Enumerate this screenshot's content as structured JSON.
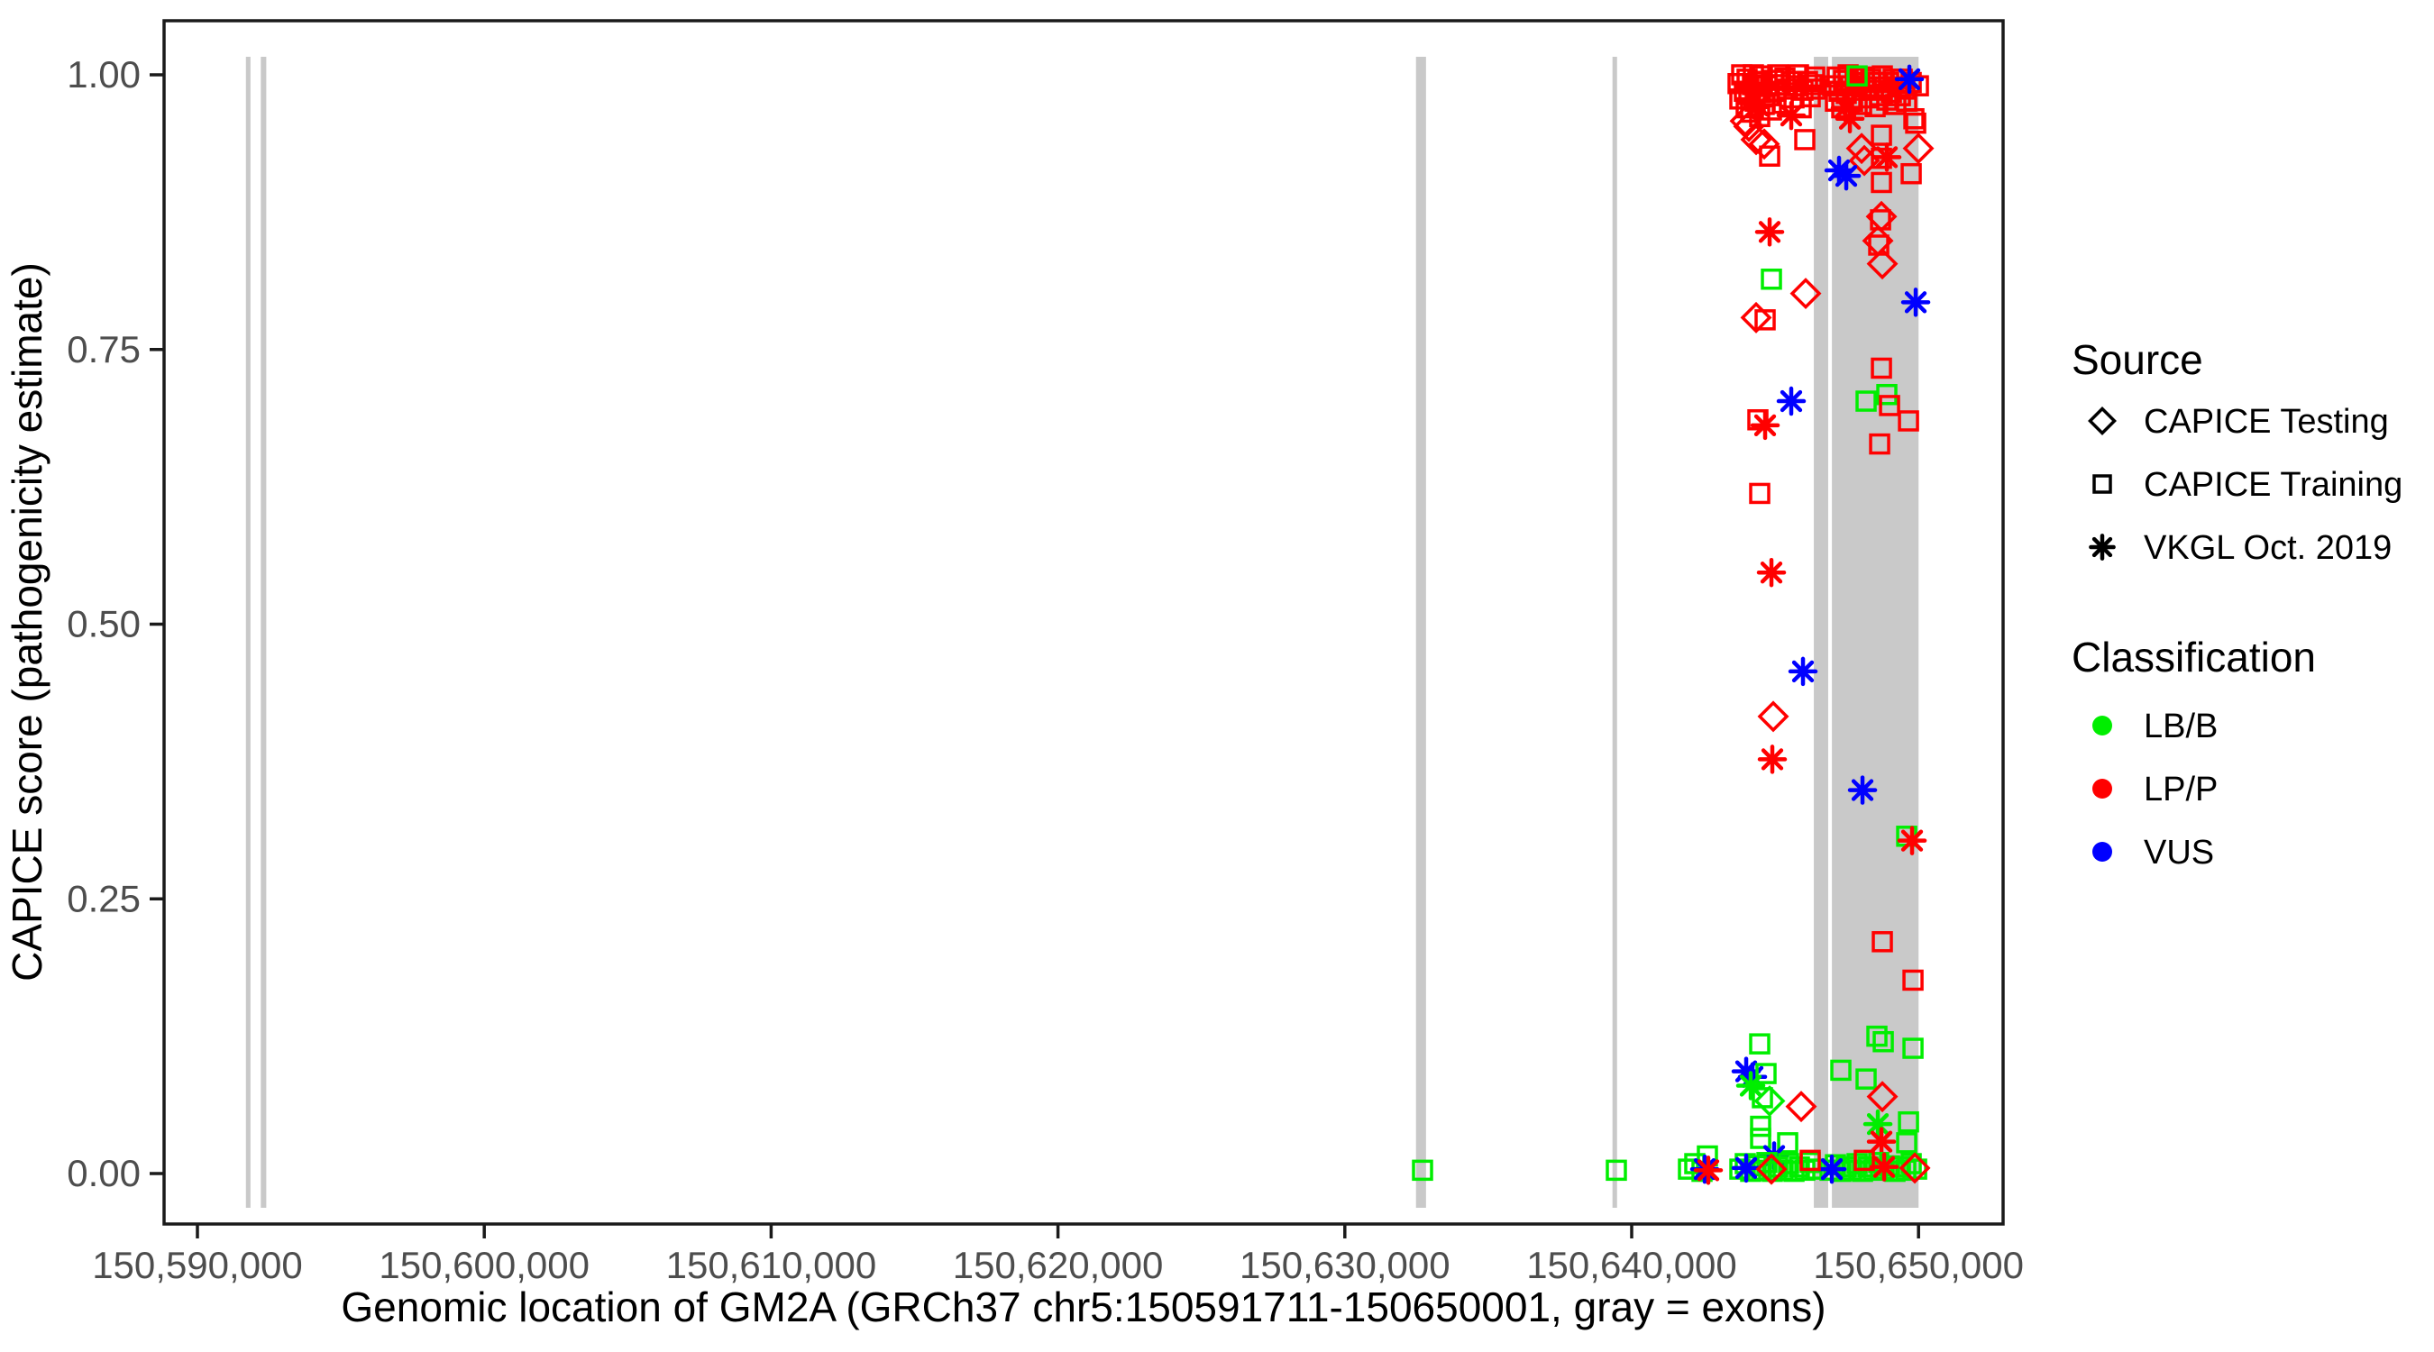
{
  "colors": {
    "g": "#00ee00",
    "r": "#ff0000",
    "b": "#0000ff",
    "exon": "#c9c9c9",
    "axis": "#1a1a1a",
    "tick_text": "#4d4d4d"
  },
  "legend": {
    "source_title": "Source",
    "source_items": [
      {
        "label": "CAPICE Testing",
        "shape": "d"
      },
      {
        "label": "CAPICE Training",
        "shape": "s"
      },
      {
        "label": "VKGL Oct. 2019",
        "shape": "a"
      }
    ],
    "classification_title": "Classification",
    "classification_items": [
      {
        "label": "LB/B",
        "key": "g"
      },
      {
        "label": "LP/P",
        "key": "r"
      },
      {
        "label": "VUS",
        "key": "b"
      }
    ]
  },
  "chart_data": {
    "type": "scatter",
    "title": "",
    "xlabel": "Genomic location of GM2A (GRCh37 chr5:150591711-150650001, gray = exons)",
    "ylabel": "CAPICE score (pathogenicity estimate)",
    "x_range_bp": [
      150591711,
      150650001
    ],
    "ylim": [
      0,
      1
    ],
    "grid": false,
    "legend_position": "right",
    "x_ticks": [
      {
        "bp": 150590000,
        "label": "150,590,000"
      },
      {
        "bp": 150600000,
        "label": "150,600,000"
      },
      {
        "bp": 150610000,
        "label": "150,610,000"
      },
      {
        "bp": 150620000,
        "label": "150,620,000"
      },
      {
        "bp": 150630000,
        "label": "150,630,000"
      },
      {
        "bp": 150640000,
        "label": "150,640,000"
      },
      {
        "bp": 150650000,
        "label": "150,650,000"
      }
    ],
    "y_ticks": [
      {
        "v": 0.0,
        "label": "0.00"
      },
      {
        "v": 0.25,
        "label": "0.25"
      },
      {
        "v": 0.5,
        "label": "0.50"
      },
      {
        "v": 0.75,
        "label": "0.75"
      },
      {
        "v": 1.0,
        "label": "1.00"
      }
    ],
    "exons_bp": [
      [
        150591690,
        150591850
      ],
      [
        150592210,
        150592400
      ],
      [
        150632480,
        150632830
      ],
      [
        150639330,
        150639490
      ],
      [
        150646350,
        150646850
      ],
      [
        150646980,
        150650001
      ]
    ],
    "shape_meaning": {
      "d": "CAPICE Testing (diamond)",
      "s": "CAPICE Training (square)",
      "a": "VKGL Oct. 2019 (asterisk)"
    },
    "class_meaning": {
      "g": "LB/B",
      "r": "LP/P",
      "b": "VUS"
    },
    "points": [
      [
        150643709,
        0.992,
        "s",
        "r"
      ],
      [
        150643772,
        0.978,
        "s",
        "r"
      ],
      [
        150643835,
        1.0,
        "s",
        "r"
      ],
      [
        150643929,
        0.985,
        "s",
        "r"
      ],
      [
        150643992,
        0.97,
        "s",
        "r"
      ],
      [
        150644023,
        0.996,
        "s",
        "r"
      ],
      [
        150644086,
        0.982,
        "s",
        "r"
      ],
      [
        150644149,
        0.966,
        "s",
        "r"
      ],
      [
        150644212,
        0.991,
        "s",
        "r"
      ],
      [
        150644243,
        1.0,
        "s",
        "r"
      ],
      [
        150644306,
        0.976,
        "s",
        "r"
      ],
      [
        150644400,
        0.994,
        "s",
        "r"
      ],
      [
        150644463,
        0.962,
        "s",
        "r"
      ],
      [
        150644495,
        0.984,
        "s",
        "r"
      ],
      [
        150644558,
        0.999,
        "s",
        "r"
      ],
      [
        150644620,
        0.973,
        "s",
        "r"
      ],
      [
        150644715,
        0.99,
        "s",
        "r"
      ],
      [
        150644778,
        0.981,
        "s",
        "r"
      ],
      [
        150644809,
        0.926,
        "s",
        "r"
      ],
      [
        150644872,
        0.968,
        "s",
        "r"
      ],
      [
        150644935,
        0.995,
        "s",
        "r"
      ],
      [
        150645029,
        0.985,
        "s",
        "r"
      ],
      [
        150645092,
        1.0,
        "s",
        "r"
      ],
      [
        150645186,
        0.991,
        "s",
        "r"
      ],
      [
        150645280,
        0.974,
        "s",
        "r"
      ],
      [
        150645343,
        0.997,
        "s",
        "r"
      ],
      [
        150645438,
        0.987,
        "s",
        "r"
      ],
      [
        150645595,
        0.994,
        "s",
        "r"
      ],
      [
        150645658,
        0.979,
        "s",
        "r"
      ],
      [
        150645752,
        0.99,
        "s",
        "r"
      ],
      [
        150645815,
        1.0,
        "s",
        "r"
      ],
      [
        150645909,
        0.97,
        "s",
        "r"
      ],
      [
        150645972,
        0.986,
        "s",
        "r"
      ],
      [
        150646035,
        0.941,
        "s",
        "r"
      ],
      [
        150646129,
        0.994,
        "s",
        "r"
      ],
      [
        150646223,
        0.98,
        "s",
        "r"
      ],
      [
        150646286,
        0.991,
        "s",
        "r"
      ],
      [
        150646381,
        0.998,
        "s",
        "r"
      ],
      [
        150646443,
        0.987,
        "s",
        "r"
      ],
      [
        150643960,
        0.958,
        "d",
        "r"
      ],
      [
        150644086,
        0.953,
        "d",
        "r"
      ],
      [
        150644338,
        0.941,
        "d",
        "r"
      ],
      [
        150644620,
        0.937,
        "d",
        "r"
      ],
      [
        150645563,
        0.963,
        "a",
        "r"
      ],
      [
        150644400,
        0.972,
        "a",
        "r"
      ],
      [
        150647009,
        0.99,
        "s",
        "r"
      ],
      [
        150647103,
        0.976,
        "s",
        "r"
      ],
      [
        150647166,
        0.998,
        "s",
        "r"
      ],
      [
        150647229,
        0.985,
        "s",
        "r"
      ],
      [
        150647324,
        0.97,
        "s",
        "r"
      ],
      [
        150647386,
        0.995,
        "s",
        "r"
      ],
      [
        150647481,
        0.983,
        "s",
        "r"
      ],
      [
        150647544,
        1.0,
        "s",
        "r"
      ],
      [
        150647607,
        0.99,
        "s",
        "r"
      ],
      [
        150647701,
        0.976,
        "s",
        "r"
      ],
      [
        150647795,
        0.997,
        "s",
        "r"
      ],
      [
        150647858,
        0.986,
        "s",
        "r"
      ],
      [
        150647952,
        0.993,
        "s",
        "r"
      ],
      [
        150648015,
        0.973,
        "s",
        "r"
      ],
      [
        150648110,
        0.998,
        "s",
        "r"
      ],
      [
        150648172,
        0.989,
        "s",
        "r"
      ],
      [
        150648267,
        0.979,
        "s",
        "r"
      ],
      [
        150648330,
        0.996,
        "s",
        "r"
      ],
      [
        150648424,
        0.986,
        "s",
        "r"
      ],
      [
        150648487,
        0.971,
        "s",
        "r"
      ],
      [
        150648581,
        0.993,
        "s",
        "r"
      ],
      [
        150648644,
        0.981,
        "s",
        "r"
      ],
      [
        150648738,
        0.999,
        "s",
        "r"
      ],
      [
        150648801,
        0.989,
        "s",
        "r"
      ],
      [
        150648895,
        0.977,
        "s",
        "r"
      ],
      [
        150648958,
        0.993,
        "s",
        "r"
      ],
      [
        150649052,
        0.984,
        "s",
        "r"
      ],
      [
        150649115,
        0.996,
        "s",
        "r"
      ],
      [
        150649210,
        0.973,
        "s",
        "r"
      ],
      [
        150649272,
        0.989,
        "s",
        "r"
      ],
      [
        150649367,
        0.981,
        "s",
        "r"
      ],
      [
        150649430,
        0.996,
        "s",
        "r"
      ],
      [
        150649524,
        0.987,
        "s",
        "r"
      ],
      [
        150649587,
        0.976,
        "s",
        "r"
      ],
      [
        150649744,
        0.993,
        "s",
        "r"
      ],
      [
        150649838,
        0.96,
        "s",
        "r"
      ],
      [
        150649901,
        0.956,
        "s",
        "r"
      ],
      [
        150649995,
        0.99,
        "s",
        "r"
      ],
      [
        150649744,
        0.91,
        "s",
        "r"
      ],
      [
        150647858,
        0.999,
        "s",
        "g"
      ],
      [
        150649681,
        0.996,
        "a",
        "b"
      ],
      [
        150647449,
        0.97,
        "a",
        "r"
      ],
      [
        150647607,
        0.96,
        "a",
        "r"
      ],
      [
        150648895,
        0.925,
        "a",
        "r"
      ],
      [
        150648015,
        0.933,
        "d",
        "r"
      ],
      [
        150648110,
        0.922,
        "d",
        "r"
      ],
      [
        150649995,
        0.933,
        "d",
        "r"
      ],
      [
        150648707,
        0.945,
        "s",
        "r"
      ],
      [
        150648707,
        0.924,
        "s",
        "r"
      ],
      [
        150648707,
        0.902,
        "s",
        "r"
      ],
      [
        150648707,
        0.871,
        "d",
        "r"
      ],
      [
        150648676,
        0.868,
        "s",
        "r"
      ],
      [
        150648581,
        0.849,
        "d",
        "r"
      ],
      [
        150648612,
        0.845,
        "s",
        "r"
      ],
      [
        150648738,
        0.828,
        "d",
        "r"
      ],
      [
        150647229,
        0.913,
        "a",
        "b"
      ],
      [
        150647481,
        0.908,
        "a",
        "b"
      ],
      [
        150644809,
        0.857,
        "a",
        "r"
      ],
      [
        150644872,
        0.814,
        "s",
        "g"
      ],
      [
        150646066,
        0.801,
        "d",
        "r"
      ],
      [
        150649901,
        0.793,
        "a",
        "b"
      ],
      [
        150644338,
        0.779,
        "d",
        "r"
      ],
      [
        150644652,
        0.777,
        "s",
        "r"
      ],
      [
        150648707,
        0.733,
        "s",
        "r"
      ],
      [
        150645563,
        0.703,
        "a",
        "b"
      ],
      [
        150648172,
        0.703,
        "s",
        "g"
      ],
      [
        150648895,
        0.709,
        "s",
        "g"
      ],
      [
        150648990,
        0.699,
        "s",
        "r"
      ],
      [
        150644400,
        0.686,
        "s",
        "r"
      ],
      [
        150644652,
        0.681,
        "a",
        "r"
      ],
      [
        150649650,
        0.685,
        "s",
        "r"
      ],
      [
        150648644,
        0.664,
        "s",
        "r"
      ],
      [
        150644463,
        0.619,
        "s",
        "r"
      ],
      [
        150644872,
        0.547,
        "a",
        "r"
      ],
      [
        150645972,
        0.457,
        "a",
        "b"
      ],
      [
        150644935,
        0.416,
        "d",
        "r"
      ],
      [
        150644903,
        0.377,
        "a",
        "r"
      ],
      [
        150648047,
        0.349,
        "a",
        "b"
      ],
      [
        150649587,
        0.307,
        "s",
        "g"
      ],
      [
        150649775,
        0.303,
        "a",
        "r"
      ],
      [
        150648738,
        0.211,
        "s",
        "r"
      ],
      [
        150649807,
        0.176,
        "s",
        "r"
      ],
      [
        150644463,
        0.118,
        "s",
        "g"
      ],
      [
        150648549,
        0.125,
        "s",
        "g"
      ],
      [
        150648770,
        0.12,
        "s",
        "g"
      ],
      [
        150649807,
        0.114,
        "s",
        "g"
      ],
      [
        150643992,
        0.093,
        "a",
        "b"
      ],
      [
        150644212,
        0.088,
        "a",
        "b"
      ],
      [
        150644149,
        0.08,
        "a",
        "g"
      ],
      [
        150644683,
        0.091,
        "s",
        "g"
      ],
      [
        150644558,
        0.069,
        "s",
        "g"
      ],
      [
        150644809,
        0.066,
        "d",
        "g"
      ],
      [
        150647292,
        0.094,
        "s",
        "g"
      ],
      [
        150648172,
        0.086,
        "s",
        "g"
      ],
      [
        150648738,
        0.07,
        "d",
        "r"
      ],
      [
        150645909,
        0.061,
        "d",
        "r"
      ],
      [
        150644495,
        0.043,
        "s",
        "g"
      ],
      [
        150644495,
        0.032,
        "s",
        "g"
      ],
      [
        150648581,
        0.045,
        "a",
        "g"
      ],
      [
        150648707,
        0.029,
        "a",
        "r"
      ],
      [
        150649650,
        0.047,
        "s",
        "g"
      ],
      [
        150649587,
        0.028,
        "s",
        "g"
      ],
      [
        150645438,
        0.028,
        "s",
        "g"
      ],
      [
        150644966,
        0.016,
        "a",
        "b"
      ],
      [
        150632709,
        0.003,
        "s",
        "g"
      ],
      [
        150639466,
        0.003,
        "s",
        "g"
      ],
      [
        150641980,
        0.004,
        "s",
        "g"
      ],
      [
        150642200,
        0.009,
        "s",
        "g"
      ],
      [
        150642452,
        0.002,
        "s",
        "g"
      ],
      [
        150642640,
        0.016,
        "s",
        "g"
      ],
      [
        150642546,
        0.004,
        "a",
        "b"
      ],
      [
        150642671,
        0.003,
        "a",
        "r"
      ],
      [
        150643772,
        0.004,
        "s",
        "g"
      ],
      [
        150643960,
        0.009,
        "s",
        "g"
      ],
      [
        150644149,
        0.002,
        "s",
        "g"
      ],
      [
        150644338,
        0.007,
        "s",
        "g"
      ],
      [
        150644526,
        0.003,
        "s",
        "g"
      ],
      [
        150644715,
        0.01,
        "s",
        "g"
      ],
      [
        150644903,
        0.002,
        "s",
        "g"
      ],
      [
        150645092,
        0.006,
        "s",
        "g"
      ],
      [
        150645280,
        0.003,
        "s",
        "g"
      ],
      [
        150645469,
        0.009,
        "s",
        "g"
      ],
      [
        150645658,
        0.002,
        "s",
        "g"
      ],
      [
        150645846,
        0.006,
        "s",
        "g"
      ],
      [
        150646035,
        0.003,
        "s",
        "g"
      ],
      [
        150646223,
        0.01,
        "s",
        "g"
      ],
      [
        150646412,
        0.004,
        "s",
        "g"
      ],
      [
        150646915,
        0.003,
        "s",
        "g"
      ],
      [
        150647103,
        0.008,
        "s",
        "g"
      ],
      [
        150647292,
        0.002,
        "s",
        "g"
      ],
      [
        150647481,
        0.006,
        "s",
        "g"
      ],
      [
        150647670,
        0.003,
        "s",
        "g"
      ],
      [
        150647858,
        0.009,
        "s",
        "g"
      ],
      [
        150648047,
        0.002,
        "s",
        "g"
      ],
      [
        150648235,
        0.006,
        "s",
        "g"
      ],
      [
        150648424,
        0.003,
        "s",
        "g"
      ],
      [
        150648612,
        0.01,
        "s",
        "g"
      ],
      [
        150648801,
        0.004,
        "s",
        "g"
      ],
      [
        150648990,
        0.007,
        "s",
        "g"
      ],
      [
        150649178,
        0.002,
        "s",
        "g"
      ],
      [
        150649367,
        0.006,
        "s",
        "g"
      ],
      [
        150649555,
        0.003,
        "s",
        "g"
      ],
      [
        150649744,
        0.009,
        "s",
        "g"
      ],
      [
        150649933,
        0.004,
        "s",
        "g"
      ],
      [
        150643992,
        0.005,
        "a",
        "b"
      ],
      [
        150646978,
        0.004,
        "a",
        "b"
      ],
      [
        150644872,
        0.004,
        "d",
        "r"
      ],
      [
        150649870,
        0.005,
        "d",
        "r"
      ],
      [
        150646223,
        0.012,
        "s",
        "r"
      ],
      [
        150648110,
        0.012,
        "s",
        "r"
      ],
      [
        150648801,
        0.006,
        "a",
        "r"
      ]
    ]
  }
}
